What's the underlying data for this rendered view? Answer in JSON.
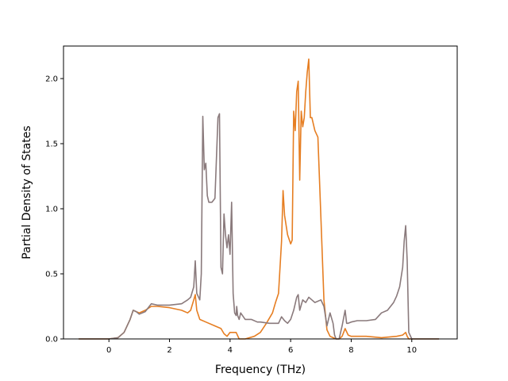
{
  "chart_data": {
    "type": "line",
    "title": "",
    "xlabel": "Frequency (THz)",
    "ylabel": "Partial Density of States",
    "xlim": [
      -1.5,
      11.5
    ],
    "ylim": [
      0.0,
      2.25
    ],
    "xticks": [
      0,
      2,
      4,
      6,
      8,
      10
    ],
    "yticks": [
      0.0,
      0.5,
      1.0,
      1.5,
      2.0
    ],
    "xtick_labels": [
      "0",
      "2",
      "4",
      "6",
      "8",
      "10"
    ],
    "ytick_labels": [
      "0.0",
      "0.5",
      "1.0",
      "1.5",
      "2.0"
    ],
    "grid": false,
    "legend": "none",
    "series": [
      {
        "color": "#e67e22",
        "x": [
          -1.0,
          0.0,
          0.3,
          0.5,
          0.7,
          0.8,
          0.9,
          1.0,
          1.2,
          1.4,
          1.6,
          2.0,
          2.4,
          2.6,
          2.7,
          2.8,
          2.85,
          2.9,
          3.0,
          3.2,
          3.5,
          3.7,
          3.8,
          3.9,
          4.0,
          4.2,
          4.3,
          4.5,
          4.8,
          5.0,
          5.2,
          5.4,
          5.5,
          5.6,
          5.7,
          5.75,
          5.8,
          5.9,
          6.0,
          6.05,
          6.1,
          6.15,
          6.2,
          6.25,
          6.3,
          6.35,
          6.4,
          6.45,
          6.5,
          6.55,
          6.6,
          6.65,
          6.7,
          6.8,
          6.9,
          7.0,
          7.1,
          7.2,
          7.3,
          7.4,
          7.5,
          7.6,
          7.7,
          7.8,
          7.9,
          8.0,
          8.5,
          9.0,
          9.5,
          9.7,
          9.8,
          9.85,
          9.9,
          10.0,
          10.5,
          10.9
        ],
        "y": [
          0.0,
          0.0,
          0.01,
          0.05,
          0.15,
          0.22,
          0.21,
          0.2,
          0.22,
          0.25,
          0.25,
          0.24,
          0.22,
          0.2,
          0.22,
          0.3,
          0.34,
          0.22,
          0.15,
          0.13,
          0.1,
          0.08,
          0.04,
          0.02,
          0.05,
          0.05,
          0.0,
          0.0,
          0.02,
          0.05,
          0.12,
          0.2,
          0.28,
          0.35,
          0.75,
          1.14,
          0.95,
          0.8,
          0.73,
          0.76,
          1.75,
          1.6,
          1.9,
          1.98,
          1.22,
          1.75,
          1.63,
          1.7,
          1.9,
          2.05,
          2.15,
          1.7,
          1.7,
          1.6,
          1.55,
          0.93,
          0.3,
          0.07,
          0.02,
          0.01,
          0.0,
          0.0,
          0.02,
          0.08,
          0.03,
          0.02,
          0.02,
          0.01,
          0.02,
          0.03,
          0.05,
          0.02,
          0.0,
          0.0,
          0.0,
          0.0
        ]
      },
      {
        "color": "#8a7a7c",
        "x": [
          -1.0,
          0.0,
          0.3,
          0.5,
          0.7,
          0.8,
          0.9,
          1.0,
          1.2,
          1.3,
          1.4,
          1.6,
          2.0,
          2.4,
          2.6,
          2.7,
          2.8,
          2.85,
          2.9,
          3.0,
          3.05,
          3.1,
          3.15,
          3.2,
          3.25,
          3.3,
          3.4,
          3.5,
          3.6,
          3.65,
          3.7,
          3.75,
          3.8,
          3.85,
          3.9,
          3.95,
          4.0,
          4.05,
          4.1,
          4.15,
          4.2,
          4.22,
          4.25,
          4.3,
          4.35,
          4.5,
          4.7,
          4.9,
          5.0,
          5.3,
          5.6,
          5.7,
          5.8,
          5.9,
          6.0,
          6.1,
          6.2,
          6.25,
          6.3,
          6.4,
          6.5,
          6.6,
          6.7,
          6.8,
          7.0,
          7.1,
          7.2,
          7.3,
          7.4,
          7.45,
          7.5,
          7.6,
          7.7,
          7.8,
          7.85,
          7.9,
          8.0,
          8.2,
          8.5,
          8.8,
          9.0,
          9.2,
          9.4,
          9.5,
          9.6,
          9.7,
          9.75,
          9.8,
          9.85,
          9.9,
          10.0,
          10.5,
          10.9
        ],
        "y": [
          0.0,
          0.0,
          0.01,
          0.05,
          0.15,
          0.22,
          0.21,
          0.19,
          0.21,
          0.24,
          0.27,
          0.26,
          0.26,
          0.27,
          0.3,
          0.32,
          0.4,
          0.6,
          0.35,
          0.3,
          0.5,
          1.71,
          1.3,
          1.35,
          1.1,
          1.05,
          1.05,
          1.08,
          1.7,
          1.73,
          0.55,
          0.5,
          0.96,
          0.8,
          0.7,
          0.8,
          0.65,
          1.05,
          0.35,
          0.2,
          0.18,
          0.25,
          0.18,
          0.15,
          0.2,
          0.15,
          0.15,
          0.13,
          0.13,
          0.12,
          0.12,
          0.17,
          0.14,
          0.12,
          0.15,
          0.22,
          0.32,
          0.34,
          0.22,
          0.3,
          0.28,
          0.32,
          0.3,
          0.28,
          0.3,
          0.25,
          0.1,
          0.2,
          0.12,
          0.03,
          0.0,
          0.0,
          0.1,
          0.22,
          0.12,
          0.12,
          0.13,
          0.14,
          0.14,
          0.15,
          0.2,
          0.22,
          0.28,
          0.33,
          0.4,
          0.55,
          0.75,
          0.87,
          0.6,
          0.05,
          0.0,
          0.0,
          0.0
        ]
      }
    ]
  }
}
